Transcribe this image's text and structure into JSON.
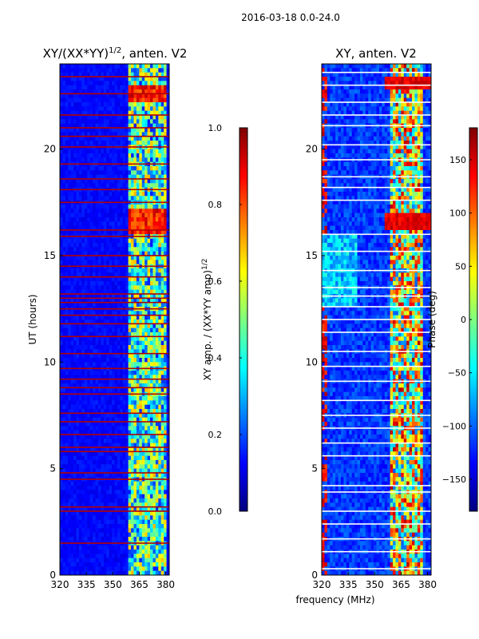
{
  "figure": {
    "suptitle": "2016-03-18 0.0-24.0"
  },
  "chart_data": [
    {
      "type": "heatmap",
      "title": "XY/(XX*YY)",
      "title_sup": "1/2",
      "title_tail": ", anten. V2",
      "xlabel": "",
      "ylabel": "UT (hours)",
      "xlim": [
        320,
        382
      ],
      "ylim": [
        0,
        24
      ],
      "xticks": [
        "320",
        "335",
        "350",
        "365",
        "380"
      ],
      "xtick_values": [
        320,
        335,
        350,
        365,
        380
      ],
      "yticks": [
        "0",
        "5",
        "10",
        "15",
        "20"
      ],
      "ytick_values": [
        0,
        5,
        10,
        15,
        20
      ],
      "colormap": "jet",
      "colorbar": {
        "label": "XY amp. / (XX*YY amp)",
        "label_sup": "1/2",
        "range": [
          0.0,
          1.0
        ],
        "ticks": [
          "0.0",
          "0.2",
          "0.4",
          "0.6",
          "0.8",
          "1.0"
        ],
        "tick_values": [
          0.0,
          0.2,
          0.4,
          0.6,
          0.8,
          1.0
        ]
      },
      "features": {
        "active_band_mhz": [
          359,
          381
        ],
        "high_value_hours": [
          [
            16.0,
            17.2
          ],
          [
            22.2,
            23.0
          ]
        ],
        "flagged_rows_hours": [
          1.5,
          3.0,
          3.2,
          4.5,
          4.8,
          5.8,
          6.0,
          6.6,
          7.2,
          7.6,
          8.5,
          8.8,
          9.2,
          9.7,
          10.4,
          11.2,
          11.8,
          12.2,
          12.5,
          12.8,
          13.0,
          13.2,
          14.0,
          14.5,
          15.0,
          15.9,
          16.2,
          17.5,
          18.1,
          18.6,
          19.3,
          20.1,
          20.6,
          21.0,
          21.6,
          22.6,
          23.4
        ]
      },
      "panel_key": "left"
    },
    {
      "type": "heatmap",
      "title": "XY, anten. V2",
      "xlabel": "frequency (MHz)",
      "ylabel": "",
      "xlim": [
        320,
        382
      ],
      "ylim": [
        0,
        24
      ],
      "xticks": [
        "320",
        "335",
        "350",
        "365",
        "380"
      ],
      "xtick_values": [
        320,
        335,
        350,
        365,
        380
      ],
      "yticks": [
        "0",
        "5",
        "10",
        "15",
        "20"
      ],
      "ytick_values": [
        0,
        5,
        10,
        15,
        20
      ],
      "colormap": "jet",
      "colorbar": {
        "label": "Phase (deg)",
        "range": [
          -180,
          180
        ],
        "ticks": [
          "−150",
          "−100",
          "−50",
          "0",
          "50",
          "100",
          "150"
        ],
        "tick_values": [
          -150,
          -100,
          -50,
          0,
          50,
          100,
          150
        ]
      },
      "features": {
        "active_band_mhz": [
          359,
          377
        ],
        "high_value_hours": [
          [
            16.3,
            16.9
          ],
          [
            22.8,
            23.4
          ]
        ],
        "white_gap_rows_hours": [
          0.3,
          1.1,
          1.7,
          2.4,
          3.0,
          3.9,
          4.2,
          5.6,
          6.2,
          6.9,
          7.5,
          8.2,
          9.1,
          9.8,
          10.5,
          11.4,
          12.0,
          12.6,
          13.1,
          13.5,
          14.3,
          15.2,
          16.0,
          17.6,
          18.2,
          18.7,
          19.5,
          20.2,
          21.1,
          21.6,
          22.2,
          23.0,
          23.6
        ]
      },
      "panel_key": "right"
    }
  ]
}
